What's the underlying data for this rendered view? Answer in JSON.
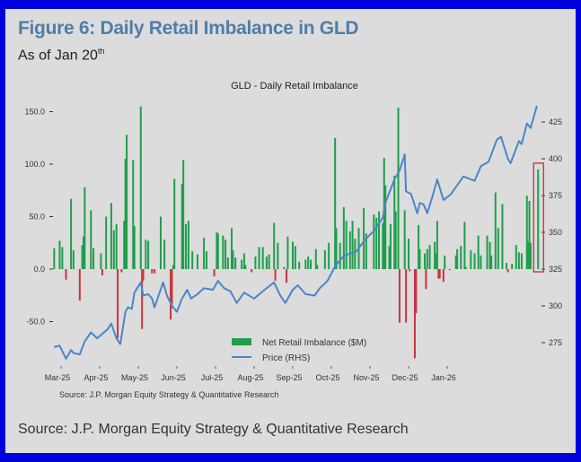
{
  "figure": {
    "title": "Figure 6: Daily Retail Imbalance in GLD",
    "subtitle": "As of Jan 20",
    "subtitle_sup": "th",
    "source": "Source: J.P. Morgan Equity Strategy & Quantitative Research"
  },
  "chart_data": {
    "type": "bar+line",
    "title": "GLD - Daily Retail Imbalance",
    "source_note": "Source: J.P. Morgan Equity Strategy & Quantitative Research",
    "x_ticks": [
      "Mar-25",
      "Apr-25",
      "May-25",
      "Jun-25",
      "Jul-25",
      "Aug-25",
      "Sep-25",
      "Oct-25",
      "Nov-25",
      "Dec-25",
      "Jan-26"
    ],
    "y_left": {
      "ticks": [
        -50,
        0,
        50,
        100,
        150
      ],
      "tick_labels": [
        "-50.0",
        "0.0",
        "50.0",
        "100.0",
        "150.0"
      ],
      "ylim": [
        -70,
        160
      ]
    },
    "y_right": {
      "ticks": [
        275,
        300,
        325,
        350,
        375,
        400,
        425
      ],
      "tick_labels": [
        "275",
        "300",
        "325",
        "350",
        "375",
        "400",
        "425"
      ],
      "ylim": [
        260,
        440
      ]
    },
    "grid": false,
    "legend": {
      "placement": "bottom-center",
      "entries": [
        "Net Retail Imbalance ($M)",
        "Price (RHS)"
      ]
    },
    "colors": {
      "positive_bar": "#1f9e4b",
      "negative_bar": "#c9343c",
      "price_line": "#4a86c8",
      "highlight_box": "#b8323a"
    },
    "highlight": {
      "date": "2026-03-12"
    },
    "series": [
      {
        "name": "Net Retail Imbalance ($M)",
        "type": "bar",
        "axis": "left",
        "points": [
          [
            "2025-02-24",
            20
          ],
          [
            "2025-02-28",
            27
          ],
          [
            "2025-03-02",
            21
          ],
          [
            "2025-03-05",
            -10
          ],
          [
            "2025-03-09",
            67
          ],
          [
            "2025-03-11",
            18
          ],
          [
            "2025-03-16",
            -30
          ],
          [
            "2025-03-18",
            23
          ],
          [
            "2025-03-19",
            31
          ],
          [
            "2025-03-20",
            78
          ],
          [
            "2025-03-25",
            56
          ],
          [
            "2025-03-27",
            20
          ],
          [
            "2025-04-02",
            15
          ],
          [
            "2025-04-03",
            -6
          ],
          [
            "2025-04-06",
            50
          ],
          [
            "2025-04-10",
            63
          ],
          [
            "2025-04-12",
            37
          ],
          [
            "2025-04-14",
            43
          ],
          [
            "2025-04-15",
            -66
          ],
          [
            "2025-04-18",
            -3
          ],
          [
            "2025-04-20",
            46
          ],
          [
            "2025-04-21",
            105
          ],
          [
            "2025-04-22",
            128
          ],
          [
            "2025-04-27",
            104
          ],
          [
            "2025-04-28",
            41
          ],
          [
            "2025-05-03",
            155
          ],
          [
            "2025-05-04",
            -57
          ],
          [
            "2025-05-05",
            -11
          ],
          [
            "2025-05-07",
            28
          ],
          [
            "2025-05-09",
            27
          ],
          [
            "2025-05-12",
            -4
          ],
          [
            "2025-05-14",
            -4
          ],
          [
            "2025-05-19",
            50
          ],
          [
            "2025-05-22",
            28
          ],
          [
            "2025-05-27",
            -48
          ],
          [
            "2025-05-28",
            -37
          ],
          [
            "2025-05-29",
            4
          ],
          [
            "2025-05-30",
            86
          ],
          [
            "2025-06-05",
            81
          ],
          [
            "2025-06-06",
            104
          ],
          [
            "2025-06-08",
            43
          ],
          [
            "2025-06-10",
            46
          ],
          [
            "2025-06-13",
            17
          ],
          [
            "2025-06-17",
            14
          ],
          [
            "2025-06-22",
            30
          ],
          [
            "2025-06-24",
            17
          ],
          [
            "2025-06-30",
            -7
          ],
          [
            "2025-07-02",
            35
          ],
          [
            "2025-07-03",
            34
          ],
          [
            "2025-07-07",
            32
          ],
          [
            "2025-07-09",
            28
          ],
          [
            "2025-07-11",
            11
          ],
          [
            "2025-07-14",
            39
          ],
          [
            "2025-07-15",
            18
          ],
          [
            "2025-07-17",
            11
          ],
          [
            "2025-07-22",
            9
          ],
          [
            "2025-07-24",
            15
          ],
          [
            "2025-07-25",
            4
          ],
          [
            "2025-07-30",
            -3
          ],
          [
            "2025-08-02",
            12
          ],
          [
            "2025-08-05",
            21
          ],
          [
            "2025-08-08",
            21
          ],
          [
            "2025-08-11",
            12
          ],
          [
            "2025-08-13",
            14
          ],
          [
            "2025-08-17",
            44
          ],
          [
            "2025-08-18",
            -11
          ],
          [
            "2025-08-20",
            25
          ],
          [
            "2025-08-25",
            2
          ],
          [
            "2025-08-27",
            -13
          ],
          [
            "2025-08-28",
            31
          ],
          [
            "2025-09-01",
            26
          ],
          [
            "2025-09-03",
            22
          ],
          [
            "2025-09-06",
            7
          ],
          [
            "2025-09-11",
            9
          ],
          [
            "2025-09-13",
            12
          ],
          [
            "2025-09-15",
            9
          ],
          [
            "2025-09-19",
            19
          ],
          [
            "2025-09-20",
            4
          ],
          [
            "2025-09-26",
            18
          ],
          [
            "2025-09-29",
            25
          ],
          [
            "2025-10-04",
            125
          ],
          [
            "2025-10-05",
            39
          ],
          [
            "2025-10-08",
            25
          ],
          [
            "2025-10-11",
            59
          ],
          [
            "2025-10-13",
            46
          ],
          [
            "2025-10-16",
            36
          ],
          [
            "2025-10-18",
            46
          ],
          [
            "2025-10-20",
            29
          ],
          [
            "2025-10-23",
            39
          ],
          [
            "2025-10-27",
            58
          ],
          [
            "2025-10-29",
            34
          ],
          [
            "2025-11-04",
            52
          ],
          [
            "2025-11-06",
            49
          ],
          [
            "2025-11-08",
            55
          ],
          [
            "2025-11-11",
            44
          ],
          [
            "2025-11-12",
            106
          ],
          [
            "2025-11-13",
            80
          ],
          [
            "2025-11-16",
            22
          ],
          [
            "2025-11-17",
            43
          ],
          [
            "2025-11-20",
            89
          ],
          [
            "2025-11-21",
            55
          ],
          [
            "2025-11-23",
            154
          ],
          [
            "2025-11-24",
            -51
          ],
          [
            "2025-11-28",
            56
          ],
          [
            "2025-11-29",
            -51
          ],
          [
            "2025-12-01",
            29
          ],
          [
            "2025-12-02",
            -2
          ],
          [
            "2025-12-06",
            -85
          ],
          [
            "2025-12-07",
            -42
          ],
          [
            "2025-12-09",
            42
          ],
          [
            "2025-12-10",
            19
          ],
          [
            "2025-12-14",
            15
          ],
          [
            "2025-12-15",
            -19
          ],
          [
            "2025-12-16",
            19
          ],
          [
            "2025-12-18",
            23
          ],
          [
            "2025-12-22",
            26
          ],
          [
            "2025-12-23",
            15
          ],
          [
            "2025-12-24",
            46
          ],
          [
            "2025-12-25",
            -9
          ],
          [
            "2025-12-26",
            -9
          ],
          [
            "2025-12-29",
            -12
          ],
          [
            "2025-12-30",
            13
          ],
          [
            "2026-01-03",
            -1
          ],
          [
            "2026-01-08",
            13
          ],
          [
            "2026-01-09",
            19
          ],
          [
            "2026-01-12",
            22
          ],
          [
            "2026-01-15",
            45
          ],
          [
            "2026-01-16",
            2
          ],
          [
            "2026-01-20",
            18
          ],
          [
            "2026-01-23",
            15
          ],
          [
            "2026-01-26",
            32
          ],
          [
            "2026-01-28",
            13
          ],
          [
            "2026-02-02",
            32
          ],
          [
            "2026-02-04",
            26
          ],
          [
            "2026-02-05",
            13
          ],
          [
            "2026-02-08",
            73
          ],
          [
            "2026-02-10",
            39
          ],
          [
            "2026-02-13",
            62
          ],
          [
            "2026-02-16",
            6
          ],
          [
            "2026-02-17",
            -3
          ],
          [
            "2026-02-20",
            5
          ],
          [
            "2026-02-23",
            23
          ],
          [
            "2026-02-25",
            16
          ],
          [
            "2026-02-27",
            15
          ],
          [
            "2026-03-03",
            70
          ],
          [
            "2026-03-04",
            26
          ],
          [
            "2026-03-05",
            65
          ],
          [
            "2026-03-06",
            25
          ],
          [
            "2026-03-12",
            95
          ]
        ]
      },
      {
        "name": "Price (RHS)",
        "type": "line",
        "axis": "right",
        "points": [
          [
            "2025-02-24",
            272
          ],
          [
            "2025-02-28",
            273
          ],
          [
            "2025-03-05",
            264
          ],
          [
            "2025-03-09",
            270
          ],
          [
            "2025-03-11",
            268
          ],
          [
            "2025-03-16",
            267
          ],
          [
            "2025-03-20",
            276
          ],
          [
            "2025-03-25",
            282
          ],
          [
            "2025-03-30",
            278
          ],
          [
            "2025-04-07",
            284
          ],
          [
            "2025-04-10",
            288
          ],
          [
            "2025-04-14",
            278
          ],
          [
            "2025-04-17",
            274
          ],
          [
            "2025-04-21",
            296
          ],
          [
            "2025-04-23",
            299
          ],
          [
            "2025-04-26",
            298
          ],
          [
            "2025-04-28",
            309
          ],
          [
            "2025-05-03",
            316
          ],
          [
            "2025-05-05",
            307
          ],
          [
            "2025-05-09",
            308
          ],
          [
            "2025-05-12",
            305
          ],
          [
            "2025-05-14",
            299
          ],
          [
            "2025-05-21",
            316
          ],
          [
            "2025-05-24",
            307
          ],
          [
            "2025-05-28",
            300
          ],
          [
            "2025-06-01",
            296
          ],
          [
            "2025-06-05",
            305
          ],
          [
            "2025-06-09",
            311
          ],
          [
            "2025-06-12",
            305
          ],
          [
            "2025-06-17",
            308
          ],
          [
            "2025-06-22",
            312
          ],
          [
            "2025-06-29",
            311
          ],
          [
            "2025-07-03",
            317
          ],
          [
            "2025-07-08",
            312
          ],
          [
            "2025-07-13",
            310
          ],
          [
            "2025-07-18",
            302
          ],
          [
            "2025-07-24",
            309
          ],
          [
            "2025-08-01",
            305
          ],
          [
            "2025-08-08",
            310
          ],
          [
            "2025-08-17",
            316
          ],
          [
            "2025-08-22",
            307
          ],
          [
            "2025-08-26",
            302
          ],
          [
            "2025-09-01",
            311
          ],
          [
            "2025-09-05",
            314
          ],
          [
            "2025-09-11",
            308
          ],
          [
            "2025-09-18",
            307
          ],
          [
            "2025-09-22",
            312
          ],
          [
            "2025-09-28",
            317
          ],
          [
            "2025-10-04",
            327
          ],
          [
            "2025-10-11",
            334
          ],
          [
            "2025-10-21",
            337
          ],
          [
            "2025-10-28",
            345
          ],
          [
            "2025-11-04",
            351
          ],
          [
            "2025-11-11",
            360
          ],
          [
            "2025-11-13",
            370
          ],
          [
            "2025-11-20",
            386
          ],
          [
            "2025-11-24",
            392
          ],
          [
            "2025-11-28",
            403
          ],
          [
            "2025-11-29",
            378
          ],
          [
            "2025-12-03",
            376
          ],
          [
            "2025-12-08",
            363
          ],
          [
            "2025-12-10",
            370
          ],
          [
            "2025-12-13",
            369
          ],
          [
            "2025-12-16",
            363
          ],
          [
            "2025-12-20",
            374
          ],
          [
            "2025-12-24",
            386
          ],
          [
            "2025-12-29",
            372
          ],
          [
            "2026-01-04",
            376
          ],
          [
            "2026-01-14",
            388
          ],
          [
            "2026-01-23",
            385
          ],
          [
            "2026-01-28",
            395
          ],
          [
            "2026-02-03",
            398
          ],
          [
            "2026-02-09",
            413
          ],
          [
            "2026-02-12",
            415
          ],
          [
            "2026-02-17",
            400
          ],
          [
            "2026-02-19",
            397
          ],
          [
            "2026-02-25",
            412
          ],
          [
            "2026-02-27",
            410
          ],
          [
            "2026-03-03",
            424
          ],
          [
            "2026-03-06",
            421
          ],
          [
            "2026-03-11",
            436
          ]
        ]
      }
    ]
  }
}
